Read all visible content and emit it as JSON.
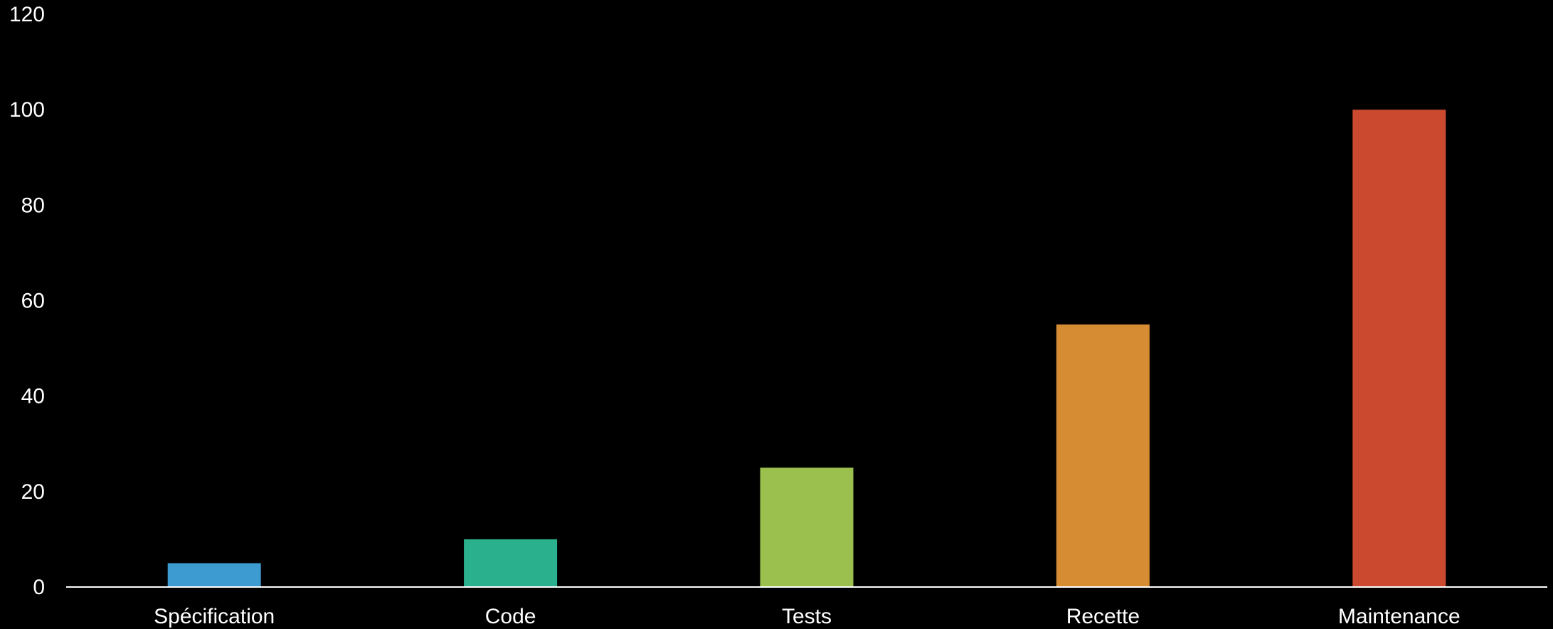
{
  "chart_data": {
    "type": "bar",
    "title": "",
    "xlabel": "",
    "ylabel": "",
    "categories": [
      "Spécification",
      "Code",
      "Tests",
      "Recette",
      "Maintenance"
    ],
    "values": [
      5,
      10,
      25,
      55,
      100
    ],
    "colors": [
      "#3E9BD1",
      "#2BB08E",
      "#9BC04E",
      "#D68C33",
      "#CB4A2F"
    ],
    "ylim": [
      0,
      120
    ],
    "yticks": [
      0,
      20,
      40,
      60,
      80,
      100,
      120
    ],
    "grid": false,
    "legend": "none",
    "background": "#000000",
    "axis_color": "#ffffff",
    "text_color": "#ffffff"
  }
}
